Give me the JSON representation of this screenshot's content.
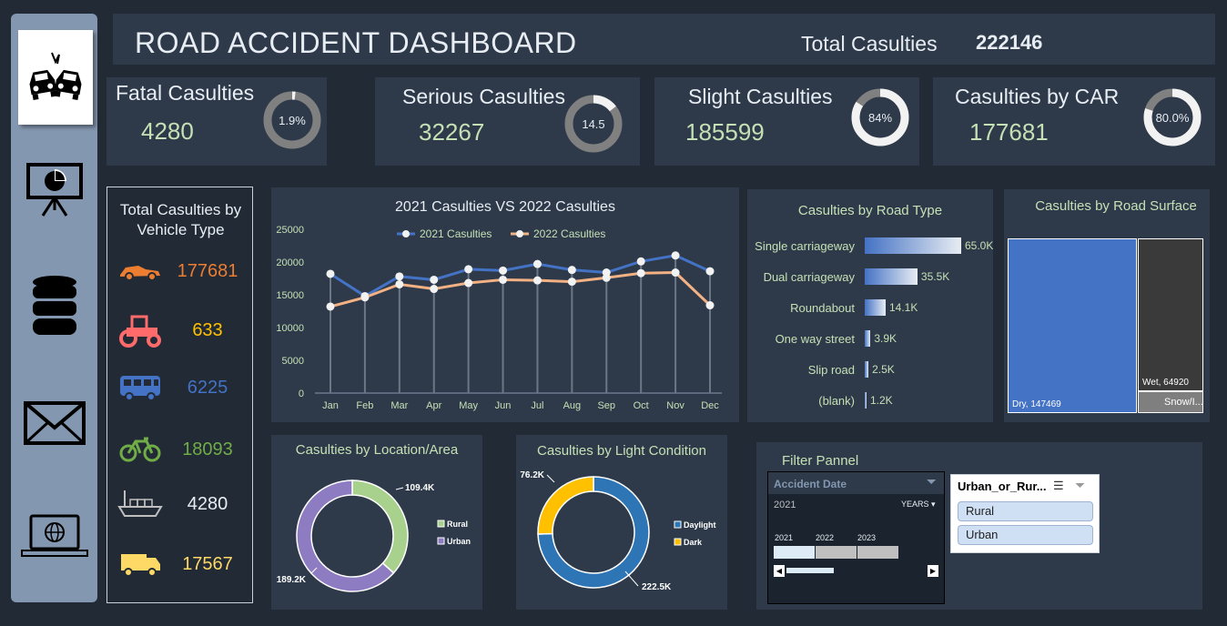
{
  "header": {
    "title": "ROAD ACCIDENT DASHBOARD",
    "total_label": "Total Casulties",
    "total_value": "222146"
  },
  "sidebar": {
    "items": [
      {
        "icon": "car-crash-icon"
      },
      {
        "icon": "presentation-chart-icon"
      },
      {
        "icon": "database-icon"
      },
      {
        "icon": "mail-icon"
      },
      {
        "icon": "laptop-globe-icon"
      }
    ]
  },
  "kpis": [
    {
      "label": "Fatal Casulties",
      "value": "4280",
      "ring_text": "1.9%",
      "fraction": 0.019
    },
    {
      "label": "Serious Casulties",
      "value": "32267",
      "ring_text": "14.5",
      "fraction": 0.145
    },
    {
      "label": "Slight Casulties",
      "value": "185599",
      "ring_text": "84%",
      "fraction": 0.84
    },
    {
      "label": "Casulties by CAR",
      "value": "177681",
      "ring_text": "80.0%",
      "fraction": 0.8
    }
  ],
  "vehicle_type": {
    "title_line1": "Total Casulties by",
    "title_line2": "Vehicle Type",
    "rows": [
      {
        "icon": "car-icon",
        "value": "177681",
        "color": "#ed7d31"
      },
      {
        "icon": "tractor-icon",
        "value": "633",
        "color": "#ffc000"
      },
      {
        "icon": "bus-icon",
        "value": "6225",
        "color": "#4472c4"
      },
      {
        "icon": "bicycle-icon",
        "value": "18093",
        "color": "#70ad47"
      },
      {
        "icon": "ship-icon",
        "value": "4280",
        "color": "#e8edf3"
      },
      {
        "icon": "truck-icon",
        "value": "17567",
        "color": "#ffd966"
      }
    ]
  },
  "chart_data": [
    {
      "type": "line",
      "title": "2021 Casulties VS 2022 Casulties",
      "categories": [
        "Jan",
        "Feb",
        "Mar",
        "Apr",
        "May",
        "Jun",
        "Jul",
        "Aug",
        "Sep",
        "Oct",
        "Nov",
        "Dec"
      ],
      "series": [
        {
          "name": "2021 Casulties",
          "color": "#4472c4",
          "values": [
            18200,
            14800,
            17800,
            17300,
            18900,
            18700,
            19700,
            18800,
            18400,
            20100,
            21000,
            18600
          ]
        },
        {
          "name": "2022 Casulties",
          "color": "#f4b183",
          "values": [
            13200,
            14600,
            16600,
            15900,
            16800,
            17300,
            17200,
            17000,
            17600,
            18300,
            18400,
            13400
          ]
        }
      ],
      "ylim": [
        0,
        25000
      ],
      "yticks": [
        "25000",
        "20000",
        "15000",
        "10000",
        "5000",
        "0"
      ],
      "legend": "top",
      "grid": false
    },
    {
      "type": "bar",
      "title": "Casulties by Road Type",
      "categories": [
        "Single carriageway",
        "Dual carriageway",
        "Roundabout",
        "One way street",
        "Slip road",
        "(blank)"
      ],
      "values": [
        65000,
        35500,
        14100,
        3900,
        2500,
        1200
      ],
      "labels": [
        "65.0K",
        "35.5K",
        "14.1K",
        "3.9K",
        "2.5K",
        "1.2K"
      ]
    },
    {
      "type": "heatmap",
      "title": "Casulties by Road Surface",
      "items": [
        {
          "label": "Dry, 147469",
          "value": 147469,
          "color": "#4472c4"
        },
        {
          "label": "Wet, 64920",
          "value": 64920,
          "color": "#3a3a3a"
        },
        {
          "label": "Snow/I...",
          "value": 9757,
          "color": "#7f7f7f"
        }
      ]
    },
    {
      "type": "pie",
      "title": "Casulties by Location/Area",
      "slices": [
        {
          "name": "Rural",
          "value": 109400,
          "label": "109.4K",
          "color": "#a9d18e"
        },
        {
          "name": "Urban",
          "value": 189200,
          "label": "189.2K",
          "color": "#8e7cc3"
        }
      ]
    },
    {
      "type": "pie",
      "title": "Casulties by Light Condition",
      "slices": [
        {
          "name": "Daylight",
          "value": 222500,
          "label": "222.5K",
          "color": "#2e75b6"
        },
        {
          "name": "Dark",
          "value": 76200,
          "label": "76.2K",
          "color": "#ffc000"
        }
      ]
    }
  ],
  "filter": {
    "title": "Filter Pannel",
    "date_slicer": {
      "header": "Accident  Date",
      "selected_year": "2021",
      "period": "YEARS",
      "years": [
        "2021",
        "2022",
        "2023"
      ]
    },
    "area_slicer": {
      "header": "Urban_or_Rur...",
      "options": [
        "Rural",
        "Urban"
      ]
    }
  }
}
